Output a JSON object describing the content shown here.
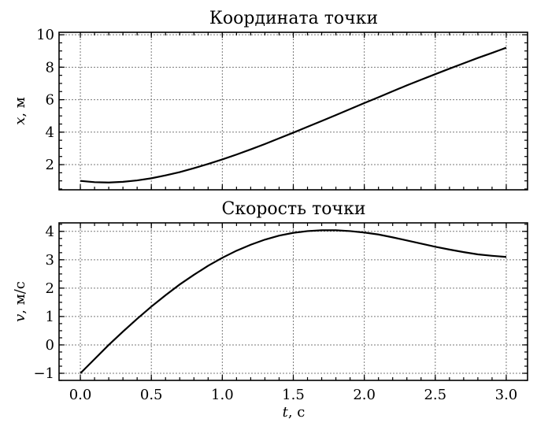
{
  "chart_data": [
    {
      "type": "line",
      "title": "Координата точки",
      "ylabel_var": "x",
      "ylabel_unit": ", м",
      "xlim": [
        -0.15,
        3.15
      ],
      "ylim": [
        0.45,
        10.15
      ],
      "xticks": [
        0.0,
        0.5,
        1.0,
        1.5,
        2.0,
        2.5,
        3.0
      ],
      "yticks": [
        2,
        4,
        6,
        8,
        10
      ],
      "ytick_labels": [
        "2",
        "4",
        "6",
        "8",
        "10"
      ],
      "show_xtick_labels": false,
      "grid": true,
      "series": [
        {
          "x": [
            0.0,
            0.1,
            0.2,
            0.3,
            0.4,
            0.5,
            0.6,
            0.7,
            0.8,
            0.9,
            1.0,
            1.1,
            1.2,
            1.3,
            1.4,
            1.5,
            1.6,
            1.7,
            1.8,
            1.9,
            2.0,
            2.1,
            2.2,
            2.3,
            2.4,
            2.5,
            2.6,
            2.7,
            2.8,
            2.9,
            3.0
          ],
          "y": [
            1.0,
            0.92,
            0.9,
            0.94,
            1.03,
            1.16,
            1.34,
            1.54,
            1.78,
            2.04,
            2.32,
            2.62,
            2.94,
            3.27,
            3.62,
            3.97,
            4.33,
            4.69,
            5.05,
            5.42,
            5.79,
            6.15,
            6.52,
            6.88,
            7.23,
            7.57,
            7.91,
            8.24,
            8.57,
            8.88,
            9.2
          ]
        }
      ]
    },
    {
      "type": "line",
      "title": "Скорость точки",
      "ylabel_var": "v",
      "ylabel_unit": ", м/с",
      "xlabel_var": "t",
      "xlabel_unit": ", с",
      "xlim": [
        -0.15,
        3.15
      ],
      "ylim": [
        -1.25,
        4.3
      ],
      "xticks": [
        0.0,
        0.5,
        1.0,
        1.5,
        2.0,
        2.5,
        3.0
      ],
      "xtick_labels": [
        "0.0",
        "0.5",
        "1.0",
        "1.5",
        "2.0",
        "2.5",
        "3.0"
      ],
      "yticks": [
        -1,
        0,
        1,
        2,
        3,
        4
      ],
      "ytick_labels": [
        "−1",
        "0",
        "1",
        "2",
        "3",
        "4"
      ],
      "show_xtick_labels": true,
      "grid": true,
      "series": [
        {
          "x": [
            0.0,
            0.1,
            0.2,
            0.3,
            0.4,
            0.5,
            0.6,
            0.7,
            0.8,
            0.9,
            1.0,
            1.1,
            1.2,
            1.3,
            1.4,
            1.5,
            1.6,
            1.7,
            1.8,
            1.9,
            2.0,
            2.1,
            2.2,
            2.3,
            2.4,
            2.5,
            2.6,
            2.7,
            2.8,
            2.9,
            3.0
          ],
          "y": [
            -1.0,
            -0.5,
            0.0,
            0.47,
            0.92,
            1.35,
            1.75,
            2.13,
            2.47,
            2.79,
            3.07,
            3.32,
            3.53,
            3.71,
            3.85,
            3.95,
            4.01,
            4.04,
            4.04,
            4.01,
            3.96,
            3.89,
            3.79,
            3.68,
            3.57,
            3.46,
            3.36,
            3.27,
            3.19,
            3.14,
            3.1
          ]
        }
      ]
    }
  ]
}
